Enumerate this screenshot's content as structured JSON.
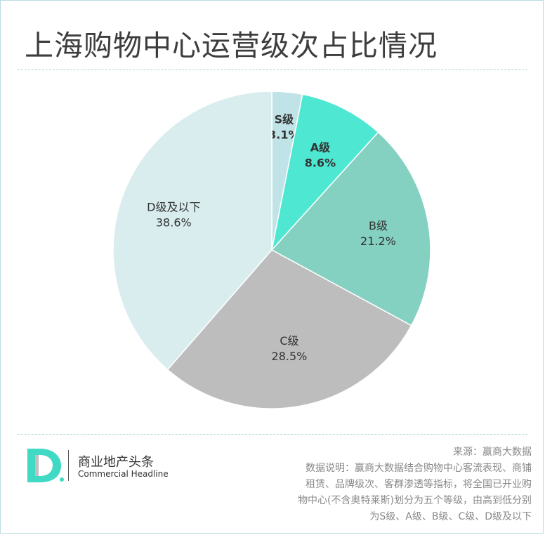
{
  "title": "上海购物中心运营级次占比情况",
  "chart_data": {
    "type": "pie",
    "title": "上海购物中心运营级次占比情况",
    "slices": [
      {
        "label": "S级",
        "value": 3.1,
        "value_text": "3.1%",
        "color": "#bfe3e6",
        "bold": true
      },
      {
        "label": "A级",
        "value": 8.6,
        "value_text": "8.6%",
        "color": "#4ee8d2",
        "bold": true
      },
      {
        "label": "B级",
        "value": 21.2,
        "value_text": "21.2%",
        "color": "#84d0c1",
        "bold": false
      },
      {
        "label": "C级",
        "value": 28.5,
        "value_text": "28.5%",
        "color": "#bdbdbd",
        "bold": false
      },
      {
        "label": "D级及以下",
        "value": 38.6,
        "value_text": "38.6%",
        "color": "#d9edef",
        "bold": false
      }
    ]
  },
  "brand": {
    "name": "商业地产头条",
    "english": "Commercial Headline",
    "colors": {
      "logo_teal": "#3fd9c4",
      "logo_dark": "#4a4a4a"
    }
  },
  "footer": {
    "source": "来源：赢商大数据",
    "note_lines": [
      "数据说明：赢商大数据结合购物中心客流表现、商铺",
      "租赁、品牌级次、客群渗透等指标，将全国已开业购",
      "物中心(不含奥特莱斯)划分为五个等级，由高到低分别",
      "为S级、A级、B级、C级、D级及以下"
    ]
  }
}
